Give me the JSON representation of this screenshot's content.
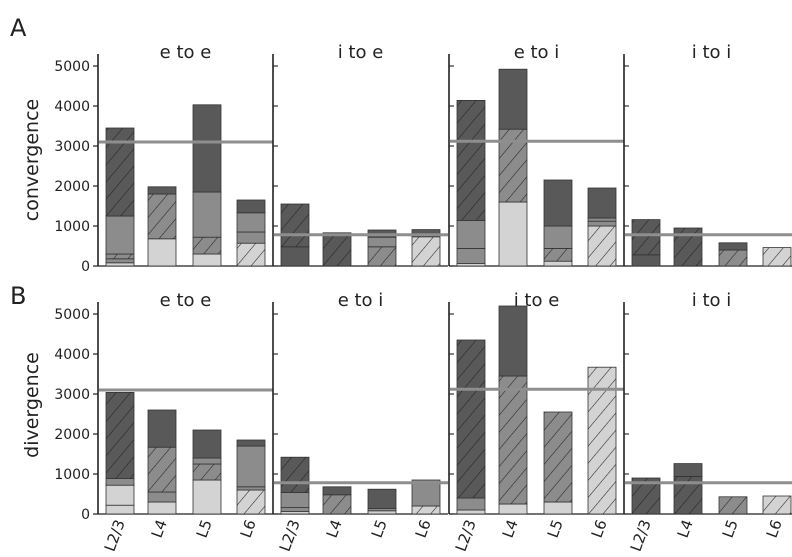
{
  "figure": {
    "background": "#ffffff"
  },
  "colors": {
    "dark": "#595959",
    "mid": "#8c8c8c",
    "light": "#d3d3d3",
    "refline": "#8e8e8e",
    "hatch": "#222222",
    "axis": "#222222"
  },
  "layer_labels": [
    "L2/3",
    "L4",
    "L5",
    "L6"
  ],
  "yticks": [
    0,
    1000,
    2000,
    3000,
    4000,
    5000
  ],
  "ylim": [
    0,
    5300
  ],
  "chart_data": [
    {
      "type": "bar",
      "stacked": true,
      "panel_letter": "A",
      "ylabel": "convergence",
      "subplots": [
        {
          "title": "e to e",
          "categories": [
            "L2/3",
            "L4",
            "L5",
            "L6"
          ],
          "reference_line": 3100,
          "stacks": [
            [
              {
                "v": 80,
                "c": "light",
                "h": false
              },
              {
                "v": 100,
                "c": "mid",
                "h": false
              },
              {
                "v": 120,
                "c": "mid",
                "h": true
              },
              {
                "v": 950,
                "c": "mid",
                "h": false
              },
              {
                "v": 2200,
                "c": "dark",
                "h": true
              }
            ],
            [
              {
                "v": 680,
                "c": "light",
                "h": false
              },
              {
                "v": 1120,
                "c": "mid",
                "h": true
              },
              {
                "v": 180,
                "c": "dark",
                "h": false
              }
            ],
            [
              {
                "v": 300,
                "c": "light",
                "h": false
              },
              {
                "v": 420,
                "c": "mid",
                "h": true
              },
              {
                "v": 1130,
                "c": "mid",
                "h": false
              },
              {
                "v": 2180,
                "c": "dark",
                "h": false
              }
            ],
            [
              {
                "v": 570,
                "c": "light",
                "h": true
              },
              {
                "v": 280,
                "c": "mid",
                "h": false
              },
              {
                "v": 480,
                "c": "mid",
                "h": false
              },
              {
                "v": 320,
                "c": "dark",
                "h": false
              }
            ]
          ]
        },
        {
          "title": "i to e",
          "categories": [
            "L2/3",
            "L4",
            "L5",
            "L6"
          ],
          "reference_line": 780,
          "stacks": [
            [
              {
                "v": 480,
                "c": "dark",
                "h": false
              },
              {
                "v": 1070,
                "c": "dark",
                "h": true
              }
            ],
            [
              {
                "v": 830,
                "c": "dark",
                "h": true
              }
            ],
            [
              {
                "v": 480,
                "c": "mid",
                "h": true
              },
              {
                "v": 240,
                "c": "mid",
                "h": false
              },
              {
                "v": 180,
                "c": "dark",
                "h": false
              }
            ],
            [
              {
                "v": 730,
                "c": "light",
                "h": true
              },
              {
                "v": 180,
                "c": "dark",
                "h": false
              }
            ]
          ]
        },
        {
          "title": "e to i",
          "categories": [
            "L2/3",
            "L4",
            "L5",
            "L6"
          ],
          "reference_line": 3120,
          "stacks": [
            [
              {
                "v": 60,
                "c": "light",
                "h": false
              },
              {
                "v": 380,
                "c": "mid",
                "h": false
              },
              {
                "v": 700,
                "c": "mid",
                "h": false
              },
              {
                "v": 3000,
                "c": "dark",
                "h": true
              }
            ],
            [
              {
                "v": 1600,
                "c": "light",
                "h": false
              },
              {
                "v": 1820,
                "c": "mid",
                "h": true
              },
              {
                "v": 1500,
                "c": "dark",
                "h": false
              }
            ],
            [
              {
                "v": 120,
                "c": "light",
                "h": false
              },
              {
                "v": 320,
                "c": "mid",
                "h": true
              },
              {
                "v": 560,
                "c": "mid",
                "h": false
              },
              {
                "v": 1150,
                "c": "dark",
                "h": false
              }
            ],
            [
              {
                "v": 1000,
                "c": "light",
                "h": true
              },
              {
                "v": 120,
                "c": "mid",
                "h": false
              },
              {
                "v": 80,
                "c": "mid",
                "h": false
              },
              {
                "v": 750,
                "c": "dark",
                "h": false
              }
            ]
          ]
        },
        {
          "title": "i to i",
          "categories": [
            "L2/3",
            "L4",
            "L5",
            "L6"
          ],
          "reference_line": 780,
          "stacks": [
            [
              {
                "v": 280,
                "c": "dark",
                "h": false
              },
              {
                "v": 880,
                "c": "dark",
                "h": true
              }
            ],
            [
              {
                "v": 950,
                "c": "dark",
                "h": true
              }
            ],
            [
              {
                "v": 400,
                "c": "mid",
                "h": true
              },
              {
                "v": 180,
                "c": "dark",
                "h": false
              }
            ],
            [
              {
                "v": 460,
                "c": "light",
                "h": true
              }
            ]
          ]
        }
      ]
    },
    {
      "type": "bar",
      "stacked": true,
      "panel_letter": "B",
      "ylabel": "divergence",
      "subplots": [
        {
          "title": "e to e",
          "categories": [
            "L2/3",
            "L4",
            "L5",
            "L6"
          ],
          "reference_line": 3100,
          "stacks": [
            [
              {
                "v": 220,
                "c": "light",
                "h": false
              },
              {
                "v": 500,
                "c": "light",
                "h": false
              },
              {
                "v": 170,
                "c": "mid",
                "h": false
              },
              {
                "v": 2150,
                "c": "dark",
                "h": true
              }
            ],
            [
              {
                "v": 300,
                "c": "light",
                "h": false
              },
              {
                "v": 250,
                "c": "mid",
                "h": false
              },
              {
                "v": 1120,
                "c": "mid",
                "h": true
              },
              {
                "v": 930,
                "c": "dark",
                "h": false
              }
            ],
            [
              {
                "v": 850,
                "c": "light",
                "h": false
              },
              {
                "v": 400,
                "c": "mid",
                "h": true
              },
              {
                "v": 150,
                "c": "mid",
                "h": false
              },
              {
                "v": 700,
                "c": "dark",
                "h": false
              }
            ],
            [
              {
                "v": 600,
                "c": "light",
                "h": true
              },
              {
                "v": 80,
                "c": "mid",
                "h": false
              },
              {
                "v": 1020,
                "c": "mid",
                "h": false
              },
              {
                "v": 150,
                "c": "dark",
                "h": false
              }
            ]
          ]
        },
        {
          "title": "e to i",
          "categories": [
            "L2/3",
            "L4",
            "L5",
            "L6"
          ],
          "reference_line": 780,
          "stacks": [
            [
              {
                "v": 60,
                "c": "light",
                "h": false
              },
              {
                "v": 100,
                "c": "mid",
                "h": false
              },
              {
                "v": 380,
                "c": "mid",
                "h": false
              },
              {
                "v": 880,
                "c": "dark",
                "h": true
              }
            ],
            [
              {
                "v": 480,
                "c": "mid",
                "h": true
              },
              {
                "v": 200,
                "c": "dark",
                "h": false
              }
            ],
            [
              {
                "v": 80,
                "c": "light",
                "h": false
              },
              {
                "v": 60,
                "c": "mid",
                "h": false
              },
              {
                "v": 480,
                "c": "dark",
                "h": false
              }
            ],
            [
              {
                "v": 200,
                "c": "light",
                "h": true
              },
              {
                "v": 650,
                "c": "mid",
                "h": false
              }
            ]
          ]
        },
        {
          "title": "i to e",
          "categories": [
            "L2/3",
            "L4",
            "L5",
            "L6"
          ],
          "reference_line": 3120,
          "stacks": [
            [
              {
                "v": 100,
                "c": "light",
                "h": false
              },
              {
                "v": 300,
                "c": "mid",
                "h": false
              },
              {
                "v": 3950,
                "c": "dark",
                "h": true
              }
            ],
            [
              {
                "v": 250,
                "c": "light",
                "h": false
              },
              {
                "v": 3200,
                "c": "mid",
                "h": true
              },
              {
                "v": 1750,
                "c": "dark",
                "h": false
              }
            ],
            [
              {
                "v": 300,
                "c": "light",
                "h": false
              },
              {
                "v": 2250,
                "c": "mid",
                "h": true
              }
            ],
            [
              {
                "v": 3670,
                "c": "light",
                "h": true
              }
            ]
          ]
        },
        {
          "title": "i to i",
          "categories": [
            "L2/3",
            "L4",
            "L5",
            "L6"
          ],
          "reference_line": 780,
          "stacks": [
            [
              {
                "v": 900,
                "c": "dark",
                "h": true
              }
            ],
            [
              {
                "v": 940,
                "c": "dark",
                "h": true
              },
              {
                "v": 320,
                "c": "dark",
                "h": false
              }
            ],
            [
              {
                "v": 430,
                "c": "mid",
                "h": true
              }
            ],
            [
              {
                "v": 450,
                "c": "light",
                "h": true
              }
            ]
          ]
        }
      ]
    }
  ]
}
